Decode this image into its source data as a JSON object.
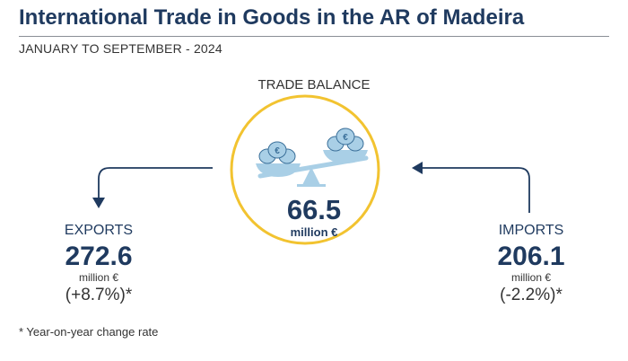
{
  "title": "International Trade in Goods in the AR of Madeira",
  "subtitle": "JANUARY TO SEPTEMBER - 2024",
  "colors": {
    "navy": "#1f3a5f",
    "circle": "#f2c330",
    "scale": "#a9cfe6",
    "scale_stroke": "#3a6f99"
  },
  "chart_data": {
    "type": "table",
    "title": "TRADE BALANCE",
    "balance": {
      "label": "TRADE BALANCE",
      "value": "66.5",
      "unit": "million €"
    },
    "exports": {
      "label": "EXPORTS",
      "value": "272.6",
      "unit": "million €",
      "change": "(+8.7%)*"
    },
    "imports": {
      "label": "IMPORTS",
      "value": "206.1",
      "unit": "million €",
      "change": "(-2.2%)*"
    }
  },
  "footnote": "* Year-on-year change rate",
  "icons": {
    "balance": "balance-scale-icon",
    "money_bags": "money-bag-icon"
  }
}
